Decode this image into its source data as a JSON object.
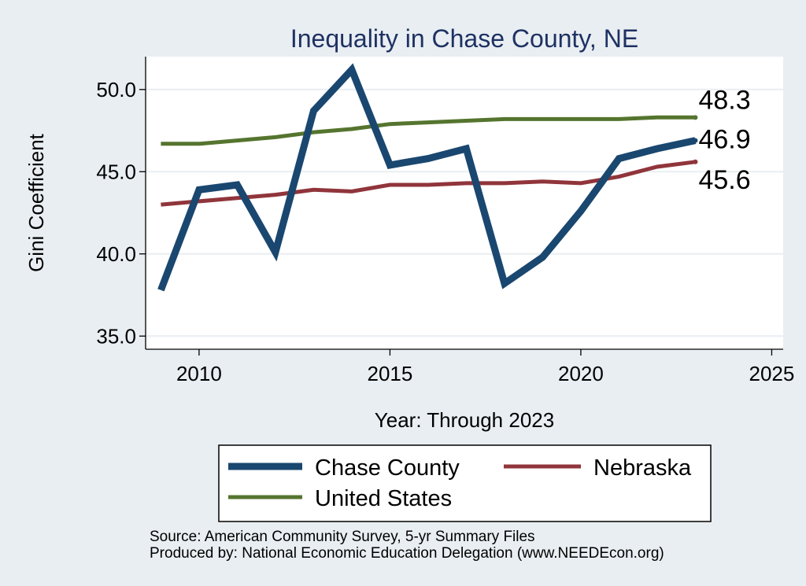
{
  "chart_data": {
    "type": "line",
    "title": "Inequality in Chase County, NE",
    "xlabel": "Year: Through 2023",
    "ylabel": "Gini Coefficient",
    "xlim": [
      2008.6,
      2025.3
    ],
    "ylim": [
      34.2,
      52
    ],
    "xticks": [
      2010,
      2015,
      2020,
      2025
    ],
    "yticks": [
      35,
      40,
      45,
      50
    ],
    "ytick_labels": [
      "35.0",
      "40.0",
      "45.0",
      "50.0"
    ],
    "x": [
      2009,
      2010,
      2011,
      2012,
      2013,
      2014,
      2015,
      2016,
      2017,
      2018,
      2019,
      2020,
      2021,
      2022,
      2023
    ],
    "series": [
      {
        "name": "Chase County",
        "color": "#1a476f",
        "values": [
          37.8,
          43.9,
          44.2,
          40.1,
          48.7,
          51.2,
          45.4,
          45.8,
          46.4,
          38.2,
          39.8,
          42.6,
          45.8,
          46.4,
          46.9
        ],
        "end_label": "46.9"
      },
      {
        "name": "Nebraska",
        "color": "#90353b",
        "values": [
          43.0,
          43.2,
          43.4,
          43.6,
          43.9,
          43.8,
          44.2,
          44.2,
          44.3,
          44.3,
          44.4,
          44.3,
          44.7,
          45.3,
          45.6
        ],
        "end_label": "45.6"
      },
      {
        "name": "United States",
        "color": "#55752f",
        "values": [
          46.7,
          46.7,
          46.9,
          47.1,
          47.4,
          47.6,
          47.9,
          48.0,
          48.1,
          48.2,
          48.2,
          48.2,
          48.2,
          48.3,
          48.3
        ],
        "end_label": "48.3"
      }
    ],
    "legend": [
      "Chase County",
      "Nebraska",
      "United States"
    ],
    "legend_position": "bottom",
    "grid": true
  },
  "source_lines": [
    "Source: American Community Survey, 5-yr Summary Files",
    "Produced by: National Economic Education Delegation (www.NEEDEcon.org)"
  ]
}
